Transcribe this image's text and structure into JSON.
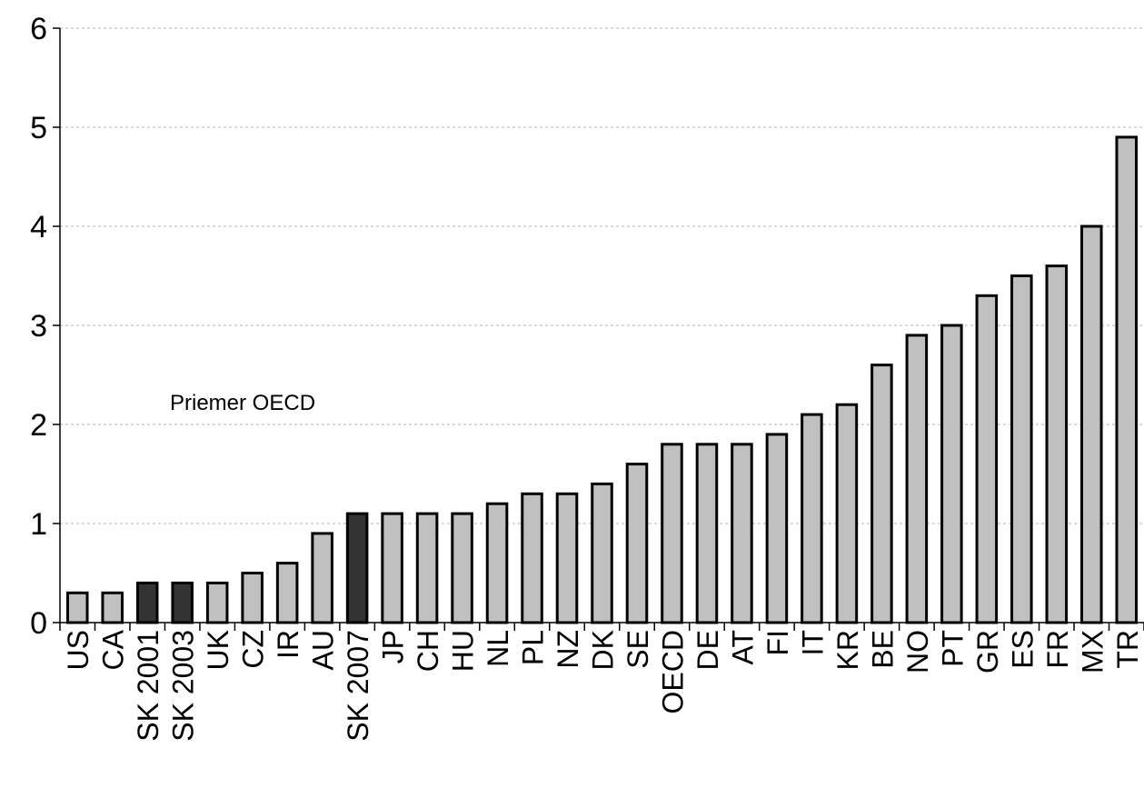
{
  "chart_data": {
    "type": "bar",
    "categories": [
      "US",
      "CA",
      "SK 2001",
      "SK 2003",
      "UK",
      "CZ",
      "IR",
      "AU",
      "SK 2007",
      "JP",
      "CH",
      "HU",
      "NL",
      "PL",
      "NZ",
      "DK",
      "SE",
      "OECD",
      "DE",
      "AT",
      "FI",
      "IT",
      "KR",
      "BE",
      "NO",
      "PT",
      "GR",
      "ES",
      "FR",
      "MX",
      "TR"
    ],
    "values": [
      0.3,
      0.3,
      0.4,
      0.4,
      0.4,
      0.5,
      0.6,
      0.9,
      1.1,
      1.1,
      1.1,
      1.1,
      1.2,
      1.3,
      1.3,
      1.4,
      1.6,
      1.8,
      1.8,
      1.8,
      1.9,
      2.1,
      2.2,
      2.6,
      2.9,
      3.0,
      3.3,
      3.5,
      3.6,
      4.0,
      4.9
    ],
    "highlighted": [
      "SK 2001",
      "SK 2003",
      "SK 2007"
    ],
    "ylim": [
      0,
      6
    ],
    "yticks": [
      0,
      1,
      2,
      3,
      4,
      5,
      6
    ],
    "grid": true,
    "annotation": "Priemer OECD",
    "colors": {
      "default_bar": "#c0c0c0",
      "highlight_bar": "#333333",
      "bar_stroke": "#000000",
      "grid": "#b3b3b3"
    }
  }
}
